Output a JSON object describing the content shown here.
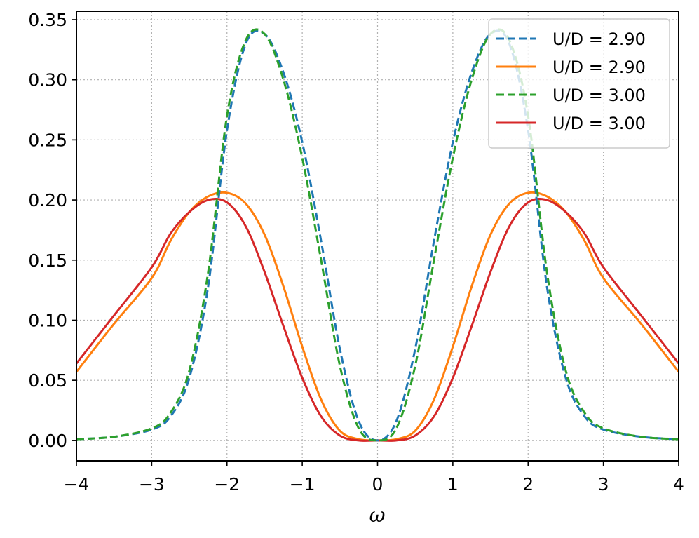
{
  "chart_data": {
    "type": "line",
    "title": "",
    "xlabel": "ω",
    "ylabel": "",
    "xlim": [
      -4,
      4
    ],
    "ylim": [
      -0.017,
      0.357
    ],
    "grid": true,
    "grid_style": "dotted",
    "legend_position": "top-right",
    "x_ticks": [
      -4,
      -3,
      -2,
      -1,
      0,
      1,
      2,
      3,
      4
    ],
    "x_tick_labels": [
      "−4",
      "−3",
      "−2",
      "−1",
      "0",
      "1",
      "2",
      "3",
      "4"
    ],
    "y_ticks": [
      0.0,
      0.05,
      0.1,
      0.15,
      0.2,
      0.25,
      0.3,
      0.35
    ],
    "y_tick_labels": [
      "0.00",
      "0.05",
      "0.10",
      "0.15",
      "0.20",
      "0.25",
      "0.30",
      "0.35"
    ],
    "x": [
      -4.0,
      -3.5,
      -3.0,
      -2.75,
      -2.5,
      -2.25,
      -2.0,
      -1.75,
      -1.5,
      -1.25,
      -1.0,
      -0.75,
      -0.5,
      -0.25,
      0.0,
      0.25,
      0.5,
      0.75,
      1.0,
      1.25,
      1.5,
      1.75,
      2.0,
      2.25,
      2.5,
      2.75,
      3.0,
      3.5,
      4.0
    ],
    "series": [
      {
        "name": "U/D = 2.90",
        "color": "#1f77b4",
        "dash": "dashed",
        "values": [
          0.001,
          0.003,
          0.009,
          0.02,
          0.052,
          0.128,
          0.258,
          0.33,
          0.338,
          0.306,
          0.248,
          0.166,
          0.076,
          0.016,
          0.0,
          0.016,
          0.076,
          0.166,
          0.248,
          0.306,
          0.338,
          0.33,
          0.258,
          0.128,
          0.052,
          0.02,
          0.009,
          0.003,
          0.001
        ]
      },
      {
        "name": "U/D = 2.90",
        "color": "#ff7f0e",
        "dash": "solid",
        "values": [
          0.057,
          0.097,
          0.135,
          0.166,
          0.19,
          0.203,
          0.206,
          0.197,
          0.171,
          0.128,
          0.078,
          0.034,
          0.008,
          0.001,
          0.0,
          0.001,
          0.008,
          0.034,
          0.078,
          0.128,
          0.171,
          0.197,
          0.206,
          0.203,
          0.19,
          0.166,
          0.135,
          0.097,
          0.057
        ]
      },
      {
        "name": "U/D = 3.00",
        "color": "#2ca02c",
        "dash": "dashed",
        "values": [
          0.001,
          0.003,
          0.01,
          0.023,
          0.058,
          0.14,
          0.27,
          0.333,
          0.338,
          0.3,
          0.235,
          0.15,
          0.062,
          0.01,
          0.0,
          0.01,
          0.062,
          0.15,
          0.235,
          0.3,
          0.338,
          0.333,
          0.27,
          0.14,
          0.058,
          0.023,
          0.01,
          0.003,
          0.001
        ]
      },
      {
        "name": "U/D = 3.00",
        "color": "#d62728",
        "dash": "solid",
        "values": [
          0.064,
          0.104,
          0.144,
          0.172,
          0.19,
          0.2,
          0.198,
          0.178,
          0.14,
          0.095,
          0.052,
          0.02,
          0.004,
          0.0,
          0.0,
          0.0,
          0.004,
          0.02,
          0.052,
          0.095,
          0.14,
          0.178,
          0.198,
          0.2,
          0.19,
          0.172,
          0.144,
          0.104,
          0.064
        ]
      }
    ],
    "legend": [
      {
        "label": "U/D = 2.90",
        "color": "#1f77b4",
        "dash": "dashed"
      },
      {
        "label": "U/D = 2.90",
        "color": "#ff7f0e",
        "dash": "solid"
      },
      {
        "label": "U/D = 3.00",
        "color": "#2ca02c",
        "dash": "dashed"
      },
      {
        "label": "U/D = 3.00",
        "color": "#d62728",
        "dash": "solid"
      }
    ]
  }
}
